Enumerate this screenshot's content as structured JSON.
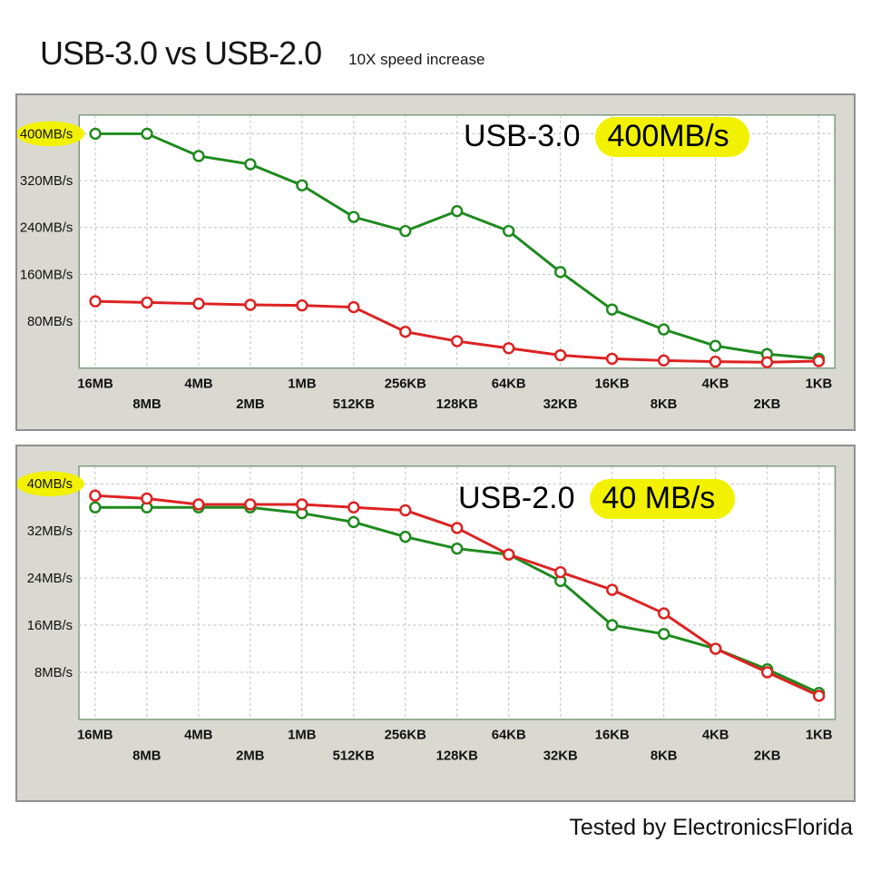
{
  "header": {
    "title": "USB-3.0 vs USB-2.0",
    "subtitle": "10X speed increase"
  },
  "footer": {
    "credit": "Tested by ElectronicsFlorida"
  },
  "colors": {
    "green_series": "#1e8a1e",
    "red_series": "#dd2222",
    "highlight": "#f2f200",
    "grid": "#bdbdbd",
    "plot_border": "#7d9b7d",
    "panel_bg": "#d9d9d2",
    "panel_border": "#8f8f8f"
  },
  "chart_data": [
    {
      "type": "line",
      "annotation": {
        "label": "USB-3.0",
        "speed": "400MB/s"
      },
      "categories": [
        "16MB",
        "8MB",
        "4MB",
        "2MB",
        "1MB",
        "512KB",
        "256KB",
        "128KB",
        "64KB",
        "32KB",
        "16KB",
        "8KB",
        "4KB",
        "2KB",
        "1KB"
      ],
      "ylim": [
        0,
        432
      ],
      "y_ticks": [
        400,
        320,
        240,
        160,
        80
      ],
      "y_tick_labels": [
        "400MB/s",
        "320MB/s",
        "240MB/s",
        "160MB/s",
        "80MB/s"
      ],
      "highlight_top_tick": true,
      "grid": true,
      "legend": "none",
      "series": [
        {
          "name": "green",
          "color": "#1e8a1e",
          "values": [
            400,
            400,
            362,
            348,
            312,
            258,
            234,
            268,
            234,
            164,
            100,
            66,
            38,
            24,
            16
          ]
        },
        {
          "name": "red",
          "color": "#dd2222",
          "values": [
            114,
            112,
            110,
            108,
            107,
            104,
            62,
            46,
            34,
            22,
            16,
            13,
            11,
            10,
            12
          ]
        }
      ]
    },
    {
      "type": "line",
      "annotation": {
        "label": "USB-2.0",
        "speed": "40 MB/s"
      },
      "categories": [
        "16MB",
        "8MB",
        "4MB",
        "2MB",
        "1MB",
        "512KB",
        "256KB",
        "128KB",
        "64KB",
        "32KB",
        "16KB",
        "8KB",
        "4KB",
        "2KB",
        "1KB"
      ],
      "ylim": [
        0,
        43
      ],
      "y_ticks": [
        40,
        32,
        24,
        16,
        8
      ],
      "y_tick_labels": [
        "40MB/s",
        "32MB/s",
        "24MB/s",
        "16MB/s",
        "8MB/s"
      ],
      "highlight_top_tick": true,
      "grid": true,
      "legend": "none",
      "series": [
        {
          "name": "green",
          "color": "#1e8a1e",
          "values": [
            36,
            36,
            36,
            36,
            35,
            33.5,
            31,
            29,
            28,
            23.5,
            16,
            14.5,
            12,
            8.5,
            4.5
          ]
        },
        {
          "name": "red",
          "color": "#dd2222",
          "values": [
            38,
            37.5,
            36.5,
            36.5,
            36.5,
            36,
            35.5,
            32.5,
            28,
            25,
            22,
            18,
            12,
            8,
            4
          ]
        }
      ]
    }
  ]
}
